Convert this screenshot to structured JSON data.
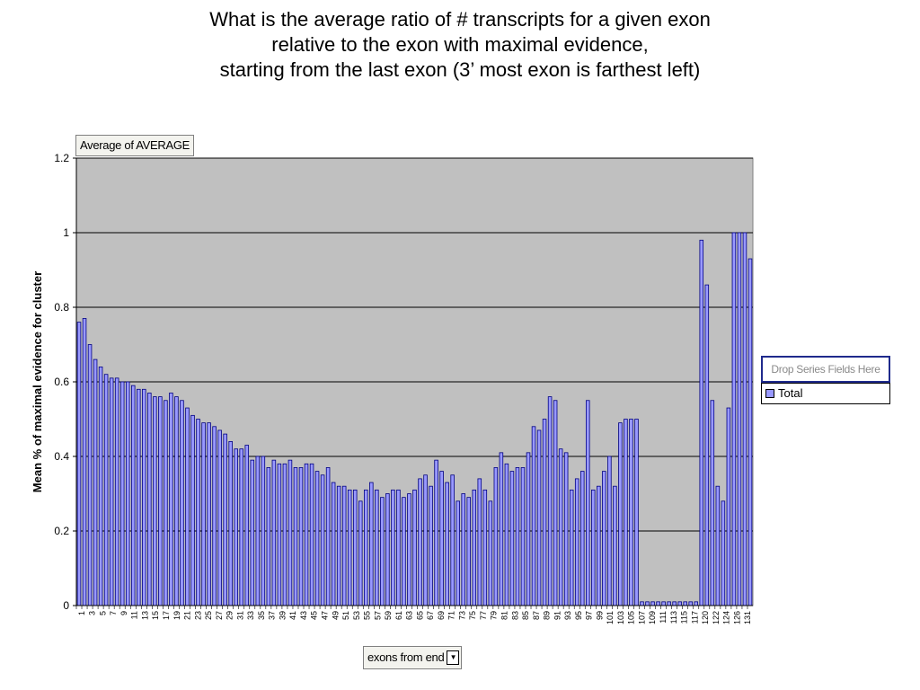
{
  "title_lines": [
    "What is the average ratio of # transcripts for a given exon",
    "relative to the exon with maximal evidence,",
    "starting from the last exon (3’ most exon is farthest left)"
  ],
  "pivot": {
    "data_field": "Average of AVERAGE",
    "series_drop": "Drop Series Fields Here",
    "category_field": "exons from end",
    "dropdown_icon": "triangle-down-icon"
  },
  "colors": {
    "plot_bg": "#c0c0c0",
    "bar_fill": "#9999ff",
    "bar_stroke": "#000080",
    "gridline": "#000000"
  },
  "chart_data": {
    "type": "bar",
    "title": "What is the average ratio of # transcripts for a given exon relative to the exon with maximal evidence, starting from the last exon (3’ most exon is farthest left)",
    "xlabel": "exons from end",
    "ylabel": "Mean % of maximal evidence for cluster",
    "ylim": [
      0,
      1.2
    ],
    "y_ticks": [
      "0",
      "0.2",
      "0.4",
      "0.6",
      "0.8",
      "1",
      "1.2"
    ],
    "grid": true,
    "legend_position": "right",
    "x_tick_labels": [
      "1",
      "3",
      "5",
      "7",
      "9",
      "11",
      "13",
      "15",
      "17",
      "19",
      "21",
      "23",
      "25",
      "27",
      "29",
      "31",
      "33",
      "35",
      "37",
      "39",
      "41",
      "43",
      "45",
      "47",
      "49",
      "51",
      "53",
      "55",
      "57",
      "59",
      "61",
      "63",
      "65",
      "67",
      "69",
      "71",
      "73",
      "75",
      "77",
      "79",
      "81",
      "83",
      "85",
      "87",
      "89",
      "91",
      "93",
      "95",
      "97",
      "99",
      "101",
      "103",
      "105",
      "107",
      "109",
      "111",
      "113",
      "115",
      "117",
      "120",
      "122",
      "124",
      "126",
      "131"
    ],
    "series": [
      {
        "name": "Total",
        "values": [
          0.76,
          0.77,
          0.7,
          0.66,
          0.64,
          0.62,
          0.61,
          0.61,
          0.6,
          0.6,
          0.59,
          0.58,
          0.58,
          0.57,
          0.56,
          0.56,
          0.55,
          0.57,
          0.56,
          0.55,
          0.53,
          0.51,
          0.5,
          0.49,
          0.49,
          0.48,
          0.47,
          0.46,
          0.44,
          0.42,
          0.42,
          0.43,
          0.39,
          0.4,
          0.4,
          0.37,
          0.39,
          0.38,
          0.38,
          0.39,
          0.37,
          0.37,
          0.38,
          0.38,
          0.36,
          0.35,
          0.37,
          0.33,
          0.32,
          0.32,
          0.31,
          0.31,
          0.28,
          0.31,
          0.33,
          0.31,
          0.29,
          0.3,
          0.31,
          0.31,
          0.29,
          0.3,
          0.31,
          0.34,
          0.35,
          0.32,
          0.39,
          0.36,
          0.33,
          0.35,
          0.28,
          0.3,
          0.29,
          0.31,
          0.34,
          0.31,
          0.28,
          0.37,
          0.41,
          0.38,
          0.36,
          0.37,
          0.37,
          0.41,
          0.48,
          0.47,
          0.5,
          0.56,
          0.55,
          0.42,
          0.41,
          0.31,
          0.34,
          0.36,
          0.55,
          0.31,
          0.32,
          0.36,
          0.4,
          0.32,
          0.49,
          0.5,
          0.5,
          0.5,
          0.01,
          0.01,
          0.01,
          0.01,
          0.01,
          0.01,
          0.01,
          0.01,
          0.01,
          0.01,
          0.01,
          0.98,
          0.86,
          0.55,
          0.32,
          0.28,
          0.53,
          1.0,
          1.0,
          1.0,
          0.93
        ]
      }
    ]
  }
}
